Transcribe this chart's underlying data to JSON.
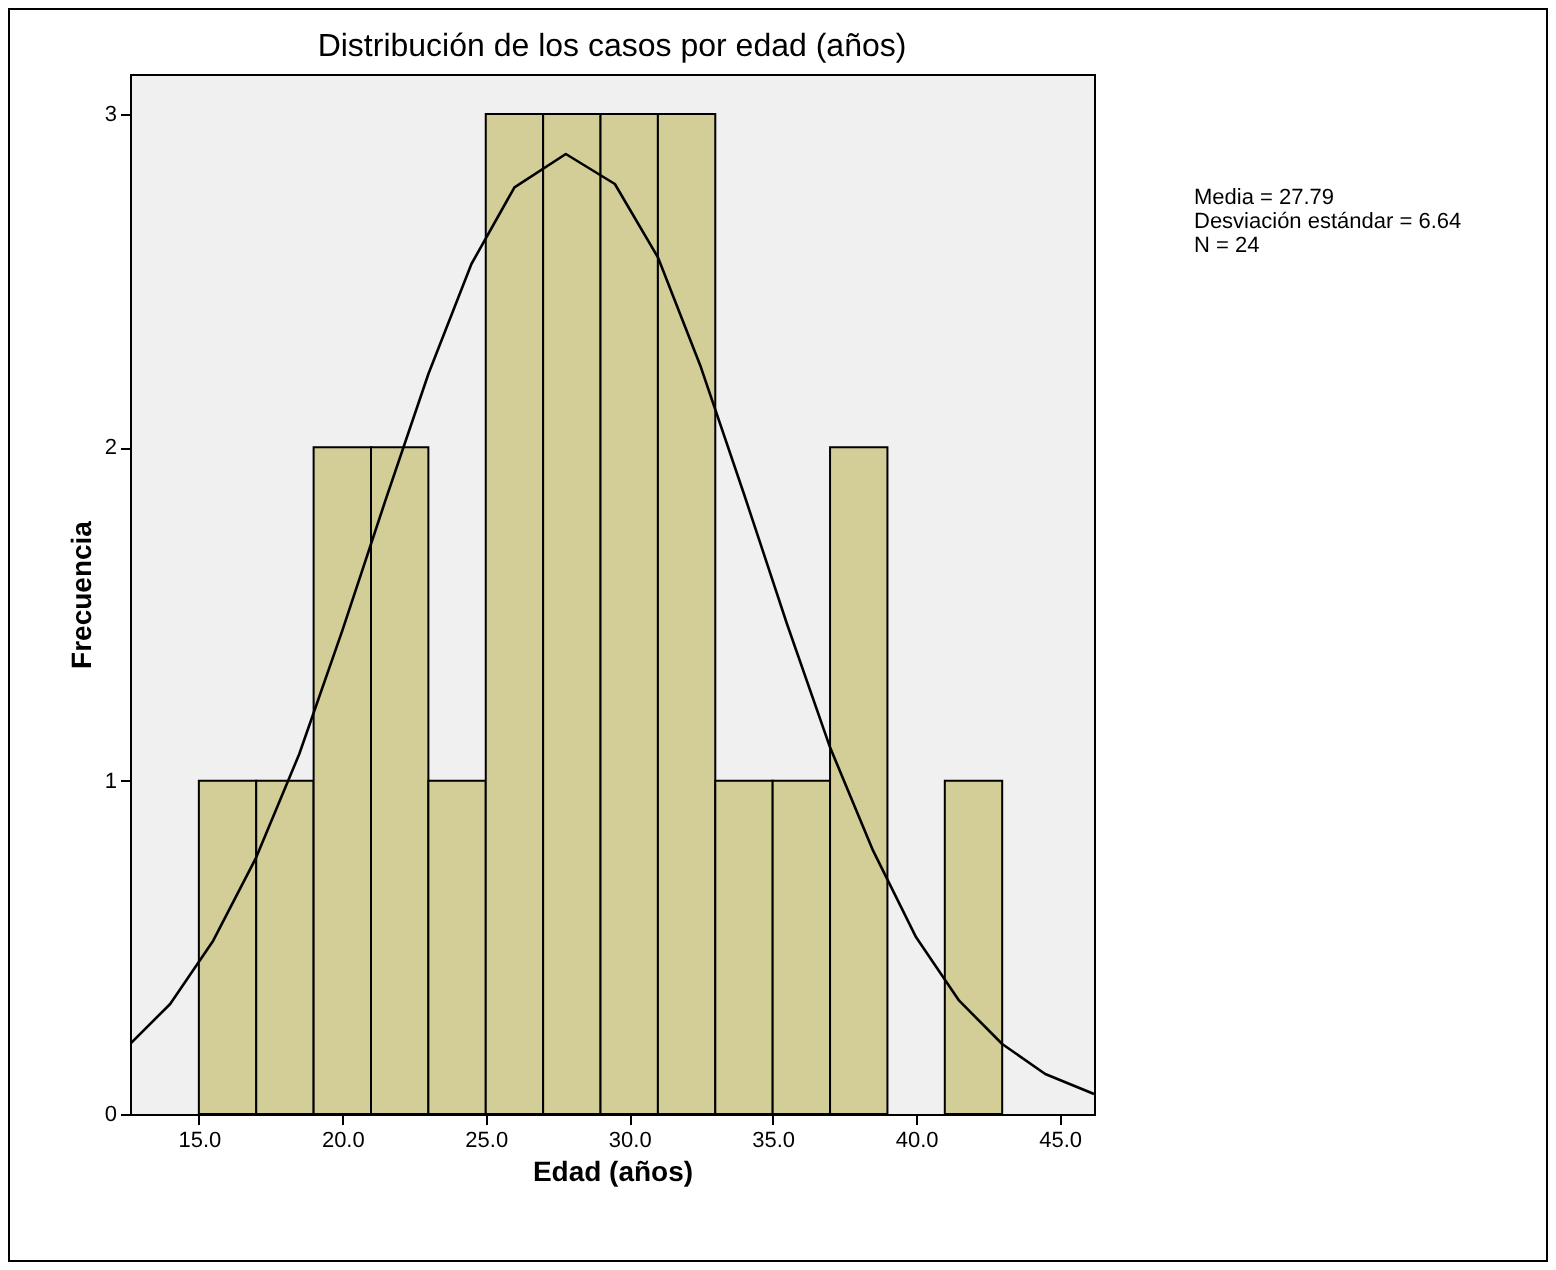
{
  "chart_data": {
    "type": "histogram",
    "title": "Distribución de los casos por edad (años)",
    "xlabel": "Edad (años)",
    "ylabel": "Frecuencia",
    "bins": [
      15,
      17,
      19,
      21,
      23,
      25,
      27,
      29,
      31,
      33,
      35,
      37,
      39,
      41,
      43
    ],
    "values": [
      1,
      1,
      2,
      2,
      1,
      3,
      3,
      3,
      3,
      1,
      1,
      2,
      0,
      1
    ],
    "color": "#d3ce97",
    "series": [
      {
        "type": "line",
        "color": "#000000",
        "x": [
          12.6,
          14,
          15.5,
          17,
          18.5,
          20,
          21.5,
          23,
          24.5,
          26,
          27.79,
          29.5,
          31,
          32.5,
          34,
          35.5,
          37,
          38.5,
          40,
          41.5,
          43,
          44.5,
          46.2
        ],
        "values": [
          0.21,
          0.33,
          0.52,
          0.77,
          1.08,
          1.45,
          1.84,
          2.22,
          2.55,
          2.78,
          2.88,
          2.79,
          2.57,
          2.24,
          1.86,
          1.47,
          1.1,
          0.79,
          0.53,
          0.34,
          0.21,
          0.12,
          0.06
        ]
      }
    ],
    "xlim": [
      12.6,
      46.2
    ],
    "ylim": [
      0,
      3.12
    ],
    "xticks": [
      {
        "value": 15,
        "label": "15.0"
      },
      {
        "value": 20,
        "label": "20.0"
      },
      {
        "value": 25,
        "label": "25.0"
      },
      {
        "value": 30,
        "label": "30.0"
      },
      {
        "value": 35,
        "label": "35.0"
      },
      {
        "value": 40,
        "label": "40.0"
      },
      {
        "value": 45,
        "label": "45.0"
      }
    ],
    "yticks": [
      0,
      1,
      2,
      3
    ],
    "grid": false,
    "marker": "none",
    "annotations": [
      "Media = 27.79",
      "Desviación estándar = 6.64",
      "N = 24"
    ]
  }
}
